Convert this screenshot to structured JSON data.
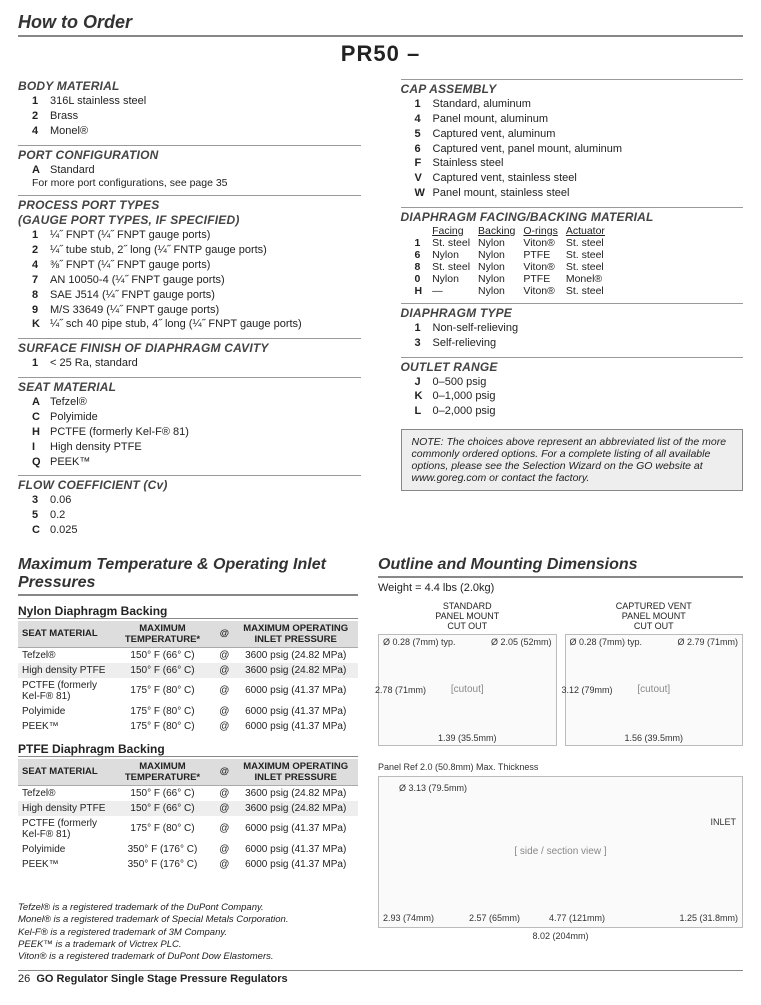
{
  "header": {
    "title": "How to Order",
    "model": "PR50 –"
  },
  "left_groups": [
    {
      "label": "BODY MATERIAL",
      "items": [
        {
          "code": "1",
          "text": "316L stainless steel"
        },
        {
          "code": "2",
          "text": "Brass"
        },
        {
          "code": "4",
          "text": "Monel®"
        }
      ]
    },
    {
      "label": "PORT CONFIGURATION",
      "items": [
        {
          "code": "A",
          "text": "Standard"
        }
      ],
      "note": "For more port configurations, see page 35"
    },
    {
      "label": "PROCESS PORT TYPES",
      "sublabel": "(GAUGE PORT TYPES, IF SPECIFIED)",
      "items": [
        {
          "code": "1",
          "text": "¼˝ FNPT (¼˝ FNPT gauge ports)"
        },
        {
          "code": "2",
          "text": "¼˝ tube stub, 2˝ long (¼˝ FNTP gauge ports)"
        },
        {
          "code": "4",
          "text": "⅜˝ FNPT (¼˝ FNPT gauge ports)"
        },
        {
          "code": "7",
          "text": "AN 10050-4 (¼˝ FNPT gauge ports)"
        },
        {
          "code": "8",
          "text": "SAE J514 (¼˝ FNPT gauge ports)"
        },
        {
          "code": "9",
          "text": "M/S 33649 (¼˝ FNPT gauge ports)"
        },
        {
          "code": "K",
          "text": "¼˝ sch 40 pipe stub, 4˝ long (¼˝ FNPT gauge ports)"
        }
      ]
    },
    {
      "label": "SURFACE FINISH OF DIAPHRAGM CAVITY",
      "items": [
        {
          "code": "1",
          "text": "< 25 Ra, standard"
        }
      ]
    },
    {
      "label": "SEAT MATERIAL",
      "items": [
        {
          "code": "A",
          "text": "Tefzel®"
        },
        {
          "code": "C",
          "text": "Polyimide"
        },
        {
          "code": "H",
          "text": "PCTFE (formerly Kel-F® 81)"
        },
        {
          "code": "I",
          "text": "High density PTFE"
        },
        {
          "code": "Q",
          "text": "PEEK™"
        }
      ]
    },
    {
      "label": "FLOW COEFFICIENT (Cv)",
      "items": [
        {
          "code": "3",
          "text": "0.06"
        },
        {
          "code": "5",
          "text": "0.2"
        },
        {
          "code": "C",
          "text": "0.025"
        }
      ]
    }
  ],
  "right_groups": {
    "cap": {
      "label": "CAP ASSEMBLY",
      "items": [
        {
          "code": "1",
          "text": "Standard, aluminum"
        },
        {
          "code": "4",
          "text": "Panel mount, aluminum"
        },
        {
          "code": "5",
          "text": "Captured vent, aluminum"
        },
        {
          "code": "6",
          "text": "Captured vent, panel mount, aluminum"
        },
        {
          "code": "F",
          "text": "Stainless steel"
        },
        {
          "code": "V",
          "text": "Captured vent, stainless steel"
        },
        {
          "code": "W",
          "text": "Panel mount, stainless steel"
        }
      ]
    },
    "facing": {
      "label": "DIAPHRAGM FACING/BACKING MATERIAL",
      "headers": [
        "",
        "Facing",
        "Backing",
        "O-rings",
        "Actuator"
      ],
      "rows": [
        [
          "1",
          "St. steel",
          "Nylon",
          "Viton®",
          "St. steel"
        ],
        [
          "6",
          "Nylon",
          "Nylon",
          "PTFE",
          "St. steel"
        ],
        [
          "8",
          "St. steel",
          "Nylon",
          "Viton®",
          "St. steel"
        ],
        [
          "0",
          "Nylon",
          "Nylon",
          "PTFE",
          "Monel®"
        ],
        [
          "H",
          "—",
          "Nylon",
          "Viton®",
          "St. steel"
        ]
      ]
    },
    "diaphragm_type": {
      "label": "DIAPHRAGM TYPE",
      "items": [
        {
          "code": "1",
          "text": "Non-self-relieving"
        },
        {
          "code": "3",
          "text": "Self-relieving"
        }
      ]
    },
    "outlet": {
      "label": "OUTLET RANGE",
      "items": [
        {
          "code": "J",
          "text": "0–500 psig"
        },
        {
          "code": "K",
          "text": "0–1,000 psig"
        },
        {
          "code": "L",
          "text": "0–2,000 psig"
        }
      ]
    }
  },
  "note": "NOTE: The choices above represent an abbreviated list of the more commonly ordered options. For a complete listing of all available options, please see the Selection Wizard on the GO website at www.goreg.com or contact  the factory.",
  "section2": {
    "title": "Maximum Temperature & Operating Inlet Pressures",
    "tables": [
      {
        "title": "Nylon Diaphragm Backing",
        "headers": [
          "SEAT MATERIAL",
          "MAXIMUM TEMPERATURE*",
          "@",
          "MAXIMUM OPERATING INLET PRESSURE"
        ],
        "rows": [
          [
            "Tefzel®",
            "150° F (66° C)",
            "@",
            "3600 psig (24.82 MPa)"
          ],
          [
            "High density PTFE",
            "150° F (66° C)",
            "@",
            "3600 psig (24.82 MPa)"
          ],
          [
            "PCTFE (formerly Kel-F® 81)",
            "175° F (80° C)",
            "@",
            "6000 psig (41.37 MPa)"
          ],
          [
            "Polyimide",
            "175° F (80° C)",
            "@",
            "6000 psig (41.37 MPa)"
          ],
          [
            "PEEK™",
            "175° F (80° C)",
            "@",
            "6000 psig (41.37 MPa)"
          ]
        ],
        "shaded": [
          1
        ]
      },
      {
        "title": "PTFE Diaphragm Backing",
        "headers": [
          "SEAT MATERIAL",
          "MAXIMUM TEMPERATURE*",
          "@",
          "MAXIMUM OPERATING INLET PRESSURE"
        ],
        "rows": [
          [
            "Tefzel®",
            "150° F (66° C)",
            "@",
            "3600 psig (24.82 MPa)"
          ],
          [
            "High density PTFE",
            "150° F (66° C)",
            "@",
            "3600 psig (24.82 MPa)"
          ],
          [
            "PCTFE (formerly Kel-F® 81)",
            "175° F (80° C)",
            "@",
            "6000 psig (41.37 MPa)"
          ],
          [
            "Polyimide",
            "350° F (176° C)",
            "@",
            "6000 psig (41.37 MPa)"
          ],
          [
            "PEEK™",
            "350° F (176° C)",
            "@",
            "6000 psig (41.37 MPa)"
          ]
        ],
        "shaded": [
          1
        ]
      }
    ]
  },
  "section3": {
    "title": "Outline and Mounting Dimensions",
    "weight": "Weight = 4.4 lbs (2.0kg)",
    "cutouts": [
      {
        "label": "STANDARD\nPANEL MOUNT\nCUT OUT",
        "dims": [
          "Ø 0.28 (7mm) typ.",
          "Ø 2.05 (52mm)",
          "2.78 (71mm)",
          "1.39 (35.5mm)"
        ]
      },
      {
        "label": "CAPTURED VENT\nPANEL MOUNT\nCUT OUT",
        "dims": [
          "Ø 0.28 (7mm) typ.",
          "Ø 2.79 (71mm)",
          "3.12 (79mm)",
          "1.56 (39.5mm)"
        ]
      }
    ],
    "side_view": {
      "dims": [
        "Panel Ref 2.0 (50.8mm) Max. Thickness",
        "Ø 3.13 (79.5mm)",
        "INLET",
        "2.93 (74mm)",
        "2.57 (65mm)",
        "4.77 (121mm)",
        "1.25 (31.8mm)",
        "8.02 (204mm)"
      ]
    }
  },
  "trademarks": [
    "Tefzel® is a registered trademark of the DuPont Company.",
    "Monel® is a registered trademark of Special Metals Corporation.",
    "Kel-F® is a registered trademark of 3M Company.",
    "PEEK™ is a trademark of Victrex PLC.",
    "Viton® is a registered trademark of DuPont Dow Elastomers."
  ],
  "footer": {
    "page": "26",
    "title": "GO Regulator Single Stage Pressure Regulators"
  }
}
